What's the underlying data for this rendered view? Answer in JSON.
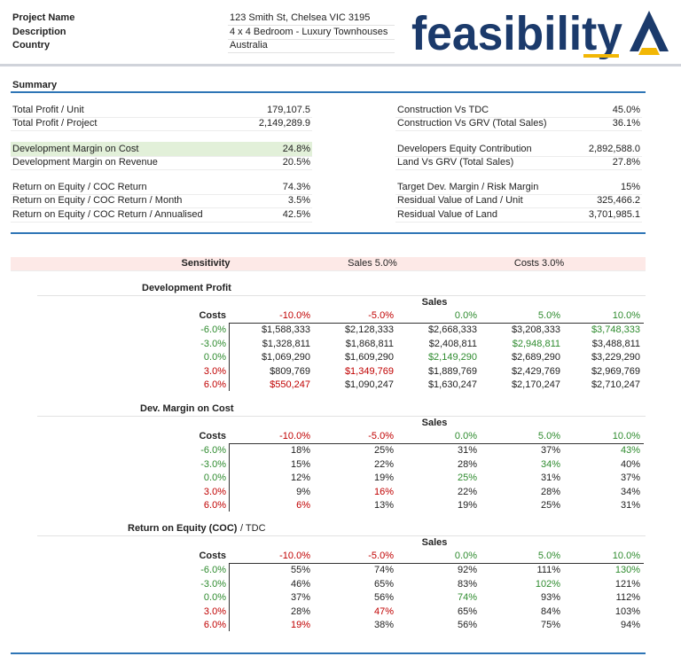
{
  "header": {
    "fields": [
      {
        "label": "Project Name",
        "value": "123 Smith St, Chelsea VIC 3195"
      },
      {
        "label": "Description",
        "value": "4 x 4 Bedroom - Luxury Townhouses"
      },
      {
        "label": "Country",
        "value": "Australia"
      }
    ],
    "logo": "feasibility"
  },
  "summary": {
    "title": "Summary",
    "left": [
      [
        {
          "label": "Total Profit / Unit",
          "value": "179,107.5"
        },
        {
          "label": "Total Profit / Project",
          "value": "2,149,289.9"
        }
      ],
      [
        {
          "label": "Development Margin on Cost",
          "value": "24.8%",
          "highlight": "#e2f0d9"
        },
        {
          "label": "Development Margin on Revenue",
          "value": "20.5%"
        }
      ],
      [
        {
          "label": "Return on Equity / COC Return",
          "value": "74.3%"
        },
        {
          "label": "Return on Equity / COC Return / Month",
          "value": "3.5%"
        },
        {
          "label": "Return on Equity / COC Return / Annualised",
          "value": "42.5%"
        }
      ]
    ],
    "right": [
      [
        {
          "label": "Construction Vs TDC",
          "value": "45.0%"
        },
        {
          "label": "Construction Vs GRV (Total Sales)",
          "value": "36.1%"
        }
      ],
      [
        {
          "label": "Developers Equity Contribution",
          "value": "2,892,588.0"
        },
        {
          "label": "Land Vs GRV (Total Sales)",
          "value": "27.8%"
        }
      ],
      [
        {
          "label": "Target Dev. Margin / Risk Margin",
          "value": "15%"
        },
        {
          "label": "Residual Value of Land / Unit",
          "value": "325,466.2"
        },
        {
          "label": "Residual Value of Land",
          "value": "3,701,985.1"
        }
      ]
    ]
  },
  "sensitivity": {
    "label": "Sensitivity",
    "sales": "Sales 5.0%",
    "costs": "Costs 3.0%",
    "column_colors": [
      "#c00000",
      "#c00000",
      "#2e8b2e",
      "#2e8b2e",
      "#2e8b2e"
    ],
    "row_colors": [
      "#2e8b2e",
      "#2e8b2e",
      "#2e8b2e",
      "#c00000",
      "#c00000"
    ],
    "tables": [
      {
        "title": "Development Profit",
        "sales_label": "Sales",
        "costs_label": "Costs",
        "columns": [
          "-10.0%",
          "-5.0%",
          "0.0%",
          "5.0%",
          "10.0%"
        ],
        "rows": [
          {
            "cost": "-6.0%",
            "cells": [
              "$1,588,333",
              "$2,128,333",
              "$2,668,333",
              "$3,208,333",
              "$3,748,333"
            ]
          },
          {
            "cost": "-3.0%",
            "cells": [
              "$1,328,811",
              "$1,868,811",
              "$2,408,811",
              "$2,948,811",
              "$3,488,811"
            ]
          },
          {
            "cost": "0.0%",
            "cells": [
              "$1,069,290",
              "$1,609,290",
              "$2,149,290",
              "$2,689,290",
              "$3,229,290"
            ]
          },
          {
            "cost": "3.0%",
            "cells": [
              "$809,769",
              "$1,349,769",
              "$1,889,769",
              "$2,429,769",
              "$2,969,769"
            ]
          },
          {
            "cost": "6.0%",
            "cells": [
              "$550,247",
              "$1,090,247",
              "$1,630,247",
              "$2,170,247",
              "$2,710,247"
            ]
          }
        ]
      },
      {
        "title": "Dev. Margin on Cost",
        "sales_label": "Sales",
        "costs_label": "Costs",
        "columns": [
          "-10.0%",
          "-5.0%",
          "0.0%",
          "5.0%",
          "10.0%"
        ],
        "rows": [
          {
            "cost": "-6.0%",
            "cells": [
              "18%",
              "25%",
              "31%",
              "37%",
              "43%"
            ]
          },
          {
            "cost": "-3.0%",
            "cells": [
              "15%",
              "22%",
              "28%",
              "34%",
              "40%"
            ]
          },
          {
            "cost": "0.0%",
            "cells": [
              "12%",
              "19%",
              "25%",
              "31%",
              "37%"
            ]
          },
          {
            "cost": "3.0%",
            "cells": [
              "9%",
              "16%",
              "22%",
              "28%",
              "34%"
            ]
          },
          {
            "cost": "6.0%",
            "cells": [
              "6%",
              "13%",
              "19%",
              "25%",
              "31%"
            ]
          }
        ]
      },
      {
        "title": "Return on Equity (COC)",
        "subtitle": "/ TDC",
        "sales_label": "Sales",
        "costs_label": "Costs",
        "columns": [
          "-10.0%",
          "-5.0%",
          "0.0%",
          "5.0%",
          "10.0%"
        ],
        "rows": [
          {
            "cost": "-6.0%",
            "cells": [
              "55%",
              "74%",
              "92%",
              "111%",
              "130%"
            ]
          },
          {
            "cost": "-3.0%",
            "cells": [
              "46%",
              "65%",
              "83%",
              "102%",
              "121%"
            ]
          },
          {
            "cost": "0.0%",
            "cells": [
              "37%",
              "56%",
              "74%",
              "93%",
              "112%"
            ]
          },
          {
            "cost": "3.0%",
            "cells": [
              "28%",
              "47%",
              "65%",
              "84%",
              "103%"
            ]
          },
          {
            "cost": "6.0%",
            "cells": [
              "19%",
              "38%",
              "56%",
              "75%",
              "94%"
            ]
          }
        ]
      }
    ]
  }
}
